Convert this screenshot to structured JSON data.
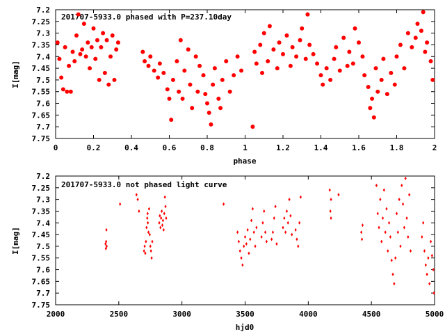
{
  "chart_data": [
    {
      "type": "scatter",
      "title": "201707-5933.0 phased with P=237.10day",
      "xlabel": "phase",
      "ylabel": "I[mag]",
      "xlim": [
        0,
        2
      ],
      "ylim": [
        7.75,
        7.2
      ],
      "y_inverted": true,
      "grid": false,
      "marker_color": "#ff0000",
      "marker": "filled-circle",
      "xticks": [
        "0",
        "0.2",
        "0.4",
        "0.6",
        "0.8",
        "1",
        "1.2",
        "1.4",
        "1.6",
        "1.8",
        "2"
      ],
      "yticks": [
        "7.2",
        "7.25",
        "7.3",
        "7.35",
        "7.4",
        "7.45",
        "7.5",
        "7.55",
        "7.6",
        "7.65",
        "7.7",
        "7.75"
      ],
      "series": [
        {
          "points": [
            [
              0.01,
              7.34
            ],
            [
              0.02,
              7.41
            ],
            [
              0.03,
              7.49
            ],
            [
              0.04,
              7.54
            ],
            [
              0.05,
              7.36
            ],
            [
              0.06,
              7.55
            ],
            [
              0.07,
              7.44
            ],
            [
              0.08,
              7.55
            ],
            [
              0.09,
              7.38
            ],
            [
              0.1,
              7.42
            ],
            [
              0.11,
              7.31
            ],
            [
              0.12,
              7.22
            ],
            [
              0.13,
              7.39
            ],
            [
              0.14,
              7.37
            ],
            [
              0.15,
              7.26
            ],
            [
              0.16,
              7.4
            ],
            [
              0.17,
              7.34
            ],
            [
              0.18,
              7.45
            ],
            [
              0.19,
              7.36
            ],
            [
              0.2,
              7.28
            ],
            [
              0.21,
              7.41
            ],
            [
              0.22,
              7.33
            ],
            [
              0.23,
              7.5
            ],
            [
              0.24,
              7.36
            ],
            [
              0.25,
              7.3
            ],
            [
              0.26,
              7.47
            ],
            [
              0.27,
              7.33
            ],
            [
              0.28,
              7.52
            ],
            [
              0.29,
              7.4
            ],
            [
              0.3,
              7.31
            ],
            [
              0.31,
              7.5
            ],
            [
              0.32,
              7.37
            ],
            [
              0.33,
              7.34
            ],
            [
              0.46,
              7.38
            ],
            [
              0.47,
              7.42
            ],
            [
              0.49,
              7.44
            ],
            [
              0.5,
              7.4
            ],
            [
              0.52,
              7.46
            ],
            [
              0.54,
              7.49
            ],
            [
              0.55,
              7.43
            ],
            [
              0.57,
              7.47
            ],
            [
              0.59,
              7.54
            ],
            [
              0.6,
              7.58
            ],
            [
              0.61,
              7.67
            ],
            [
              0.62,
              7.5
            ],
            [
              0.64,
              7.42
            ],
            [
              0.65,
              7.55
            ],
            [
              0.66,
              7.33
            ],
            [
              0.67,
              7.58
            ],
            [
              0.68,
              7.46
            ],
            [
              0.7,
              7.37
            ],
            [
              0.71,
              7.52
            ],
            [
              0.72,
              7.62
            ],
            [
              0.74,
              7.4
            ],
            [
              0.75,
              7.55
            ],
            [
              0.76,
              7.44
            ],
            [
              0.78,
              7.48
            ],
            [
              0.79,
              7.56
            ],
            [
              0.8,
              7.6
            ],
            [
              0.81,
              7.64
            ],
            [
              0.82,
              7.69
            ],
            [
              0.83,
              7.52
            ],
            [
              0.84,
              7.45
            ],
            [
              0.86,
              7.58
            ],
            [
              0.87,
              7.62
            ],
            [
              0.88,
              7.5
            ],
            [
              0.9,
              7.42
            ],
            [
              0.92,
              7.55
            ],
            [
              0.94,
              7.48
            ],
            [
              0.96,
              7.4
            ],
            [
              0.98,
              7.46
            ],
            [
              1.04,
              7.7
            ],
            [
              1.05,
              7.38
            ],
            [
              1.06,
              7.43
            ],
            [
              1.08,
              7.35
            ],
            [
              1.09,
              7.47
            ],
            [
              1.1,
              7.3
            ],
            [
              1.12,
              7.42
            ],
            [
              1.13,
              7.27
            ],
            [
              1.15,
              7.37
            ],
            [
              1.17,
              7.45
            ],
            [
              1.18,
              7.34
            ],
            [
              1.2,
              7.39
            ],
            [
              1.22,
              7.31
            ],
            [
              1.24,
              7.44
            ],
            [
              1.25,
              7.36
            ],
            [
              1.27,
              7.4
            ],
            [
              1.29,
              7.33
            ],
            [
              1.3,
              7.28
            ],
            [
              1.32,
              7.41
            ],
            [
              1.33,
              7.22
            ],
            [
              1.34,
              7.35
            ],
            [
              1.36,
              7.39
            ],
            [
              1.38,
              7.43
            ],
            [
              1.4,
              7.48
            ],
            [
              1.41,
              7.52
            ],
            [
              1.43,
              7.45
            ],
            [
              1.45,
              7.5
            ],
            [
              1.47,
              7.41
            ],
            [
              1.48,
              7.36
            ],
            [
              1.5,
              7.46
            ],
            [
              1.52,
              7.32
            ],
            [
              1.54,
              7.44
            ],
            [
              1.55,
              7.38
            ],
            [
              1.57,
              7.43
            ],
            [
              1.58,
              7.28
            ],
            [
              1.6,
              7.34
            ],
            [
              1.62,
              7.4
            ],
            [
              1.63,
              7.48
            ],
            [
              1.65,
              7.53
            ],
            [
              1.66,
              7.62
            ],
            [
              1.67,
              7.58
            ],
            [
              1.68,
              7.66
            ],
            [
              1.69,
              7.45
            ],
            [
              1.7,
              7.55
            ],
            [
              1.72,
              7.5
            ],
            [
              1.73,
              7.41
            ],
            [
              1.75,
              7.56
            ],
            [
              1.77,
              7.47
            ],
            [
              1.79,
              7.52
            ],
            [
              1.8,
              7.4
            ],
            [
              1.82,
              7.35
            ],
            [
              1.84,
              7.45
            ],
            [
              1.86,
              7.3
            ],
            [
              1.88,
              7.36
            ],
            [
              1.9,
              7.32
            ],
            [
              1.91,
              7.26
            ],
            [
              1.93,
              7.29
            ],
            [
              1.94,
              7.21
            ],
            [
              1.95,
              7.38
            ],
            [
              1.96,
              7.34
            ],
            [
              1.98,
              7.42
            ],
            [
              1.99,
              7.5
            ]
          ]
        }
      ]
    },
    {
      "type": "scatter",
      "title": "201707-5933.0 not phased light curve",
      "xlabel": "hjd0",
      "ylabel": "I[mag]",
      "xlim": [
        2000,
        5000
      ],
      "ylim": [
        7.75,
        7.2
      ],
      "y_inverted": true,
      "grid": false,
      "marker_color": "#ff0000",
      "marker": "small-diamond",
      "xticks": [
        "2000",
        "2500",
        "3000",
        "3500",
        "4000",
        "4500",
        "5000"
      ],
      "yticks": [
        "7.2",
        "7.25",
        "7.3",
        "7.35",
        "7.4",
        "7.45",
        "7.5",
        "7.55",
        "7.6",
        "7.65",
        "7.7",
        "7.75"
      ],
      "series": [
        {
          "points": [
            [
              2395,
              7.49
            ],
            [
              2398,
              7.51
            ],
            [
              2400,
              7.48
            ],
            [
              2402,
              7.43
            ],
            [
              2404,
              7.5
            ],
            [
              2510,
              7.32
            ],
            [
              2640,
              7.28
            ],
            [
              2650,
              7.3
            ],
            [
              2660,
              7.35
            ],
            [
              2700,
              7.52
            ],
            [
              2705,
              7.5
            ],
            [
              2710,
              7.53
            ],
            [
              2715,
              7.48
            ],
            [
              2720,
              7.42
            ],
            [
              2725,
              7.38
            ],
            [
              2728,
              7.36
            ],
            [
              2730,
              7.4
            ],
            [
              2735,
              7.44
            ],
            [
              2740,
              7.34
            ],
            [
              2745,
              7.45
            ],
            [
              2750,
              7.5
            ],
            [
              2755,
              7.52
            ],
            [
              2760,
              7.55
            ],
            [
              2765,
              7.48
            ],
            [
              2820,
              7.4
            ],
            [
              2825,
              7.37
            ],
            [
              2830,
              7.42
            ],
            [
              2835,
              7.38
            ],
            [
              2840,
              7.35
            ],
            [
              2845,
              7.41
            ],
            [
              2850,
              7.39
            ],
            [
              2855,
              7.43
            ],
            [
              2860,
              7.36
            ],
            [
              2865,
              7.29
            ],
            [
              2870,
              7.33
            ],
            [
              2875,
              7.38
            ],
            [
              3330,
              7.32
            ],
            [
              3440,
              7.44
            ],
            [
              3450,
              7.48
            ],
            [
              3460,
              7.52
            ],
            [
              3470,
              7.55
            ],
            [
              3480,
              7.58
            ],
            [
              3490,
              7.5
            ],
            [
              3500,
              7.46
            ],
            [
              3510,
              7.49
            ],
            [
              3520,
              7.43
            ],
            [
              3530,
              7.53
            ],
            [
              3540,
              7.47
            ],
            [
              3550,
              7.39
            ],
            [
              3560,
              7.34
            ],
            [
              3570,
              7.44
            ],
            [
              3580,
              7.5
            ],
            [
              3590,
              7.42
            ],
            [
              3630,
              7.46
            ],
            [
              3640,
              7.4
            ],
            [
              3650,
              7.35
            ],
            [
              3660,
              7.44
            ],
            [
              3670,
              7.48
            ],
            [
              3710,
              7.47
            ],
            [
              3720,
              7.44
            ],
            [
              3730,
              7.38
            ],
            [
              3740,
              7.33
            ],
            [
              3750,
              7.49
            ],
            [
              3800,
              7.42
            ],
            [
              3810,
              7.38
            ],
            [
              3820,
              7.44
            ],
            [
              3830,
              7.35
            ],
            [
              3840,
              7.4
            ],
            [
              3850,
              7.3
            ],
            [
              3860,
              7.37
            ],
            [
              3870,
              7.45
            ],
            [
              3900,
              7.43
            ],
            [
              3910,
              7.47
            ],
            [
              3920,
              7.5
            ],
            [
              3930,
              7.4
            ],
            [
              3940,
              7.29
            ],
            [
              4170,
              7.26
            ],
            [
              4180,
              7.3
            ],
            [
              4175,
              7.35
            ],
            [
              4180,
              7.38
            ],
            [
              4240,
              7.28
            ],
            [
              4420,
              7.44
            ],
            [
              4425,
              7.47
            ],
            [
              4430,
              7.41
            ],
            [
              4540,
              7.24
            ],
            [
              4550,
              7.36
            ],
            [
              4560,
              7.42
            ],
            [
              4570,
              7.3
            ],
            [
              4580,
              7.48
            ],
            [
              4590,
              7.38
            ],
            [
              4600,
              7.26
            ],
            [
              4610,
              7.44
            ],
            [
              4620,
              7.34
            ],
            [
              4630,
              7.52
            ],
            [
              4640,
              7.4
            ],
            [
              4650,
              7.46
            ],
            [
              4660,
              7.56
            ],
            [
              4670,
              7.62
            ],
            [
              4680,
              7.66
            ],
            [
              4690,
              7.55
            ],
            [
              4700,
              7.36
            ],
            [
              4710,
              7.44
            ],
            [
              4720,
              7.3
            ],
            [
              4730,
              7.5
            ],
            [
              4740,
              7.24
            ],
            [
              4750,
              7.32
            ],
            [
              4760,
              7.42
            ],
            [
              4770,
              7.21
            ],
            [
              4780,
              7.38
            ],
            [
              4790,
              7.46
            ],
            [
              4800,
              7.28
            ],
            [
              4810,
              7.52
            ],
            [
              4900,
              7.46
            ],
            [
              4910,
              7.4
            ],
            [
              4920,
              7.52
            ],
            [
              4930,
              7.58
            ],
            [
              4940,
              7.62
            ],
            [
              4950,
              7.55
            ],
            [
              4960,
              7.66
            ],
            [
              4970,
              7.48
            ],
            [
              4980,
              7.54
            ],
            [
              4990,
              7.6
            ],
            [
              4995,
              7.7
            ]
          ]
        }
      ]
    }
  ]
}
